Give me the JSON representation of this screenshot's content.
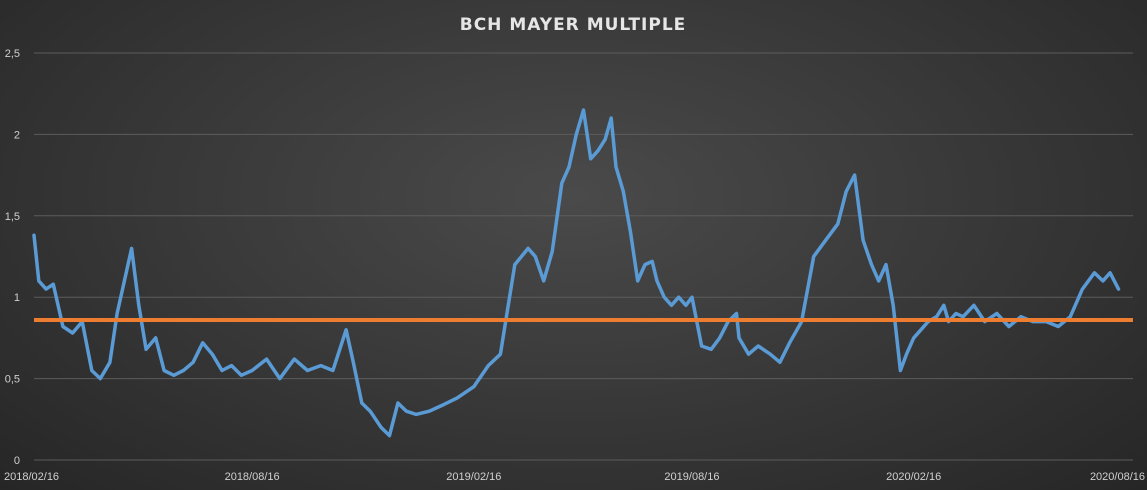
{
  "chart_data": {
    "type": "line",
    "title": "BCH MAYER MULTIPLE",
    "xlabel": "",
    "ylabel": "",
    "x_range": [
      "2018/02/16",
      "2020/08/16"
    ],
    "ylim": [
      0,
      2.5
    ],
    "grid": true,
    "legend": "none",
    "ytick_labels": [
      "0",
      "0,5",
      "1",
      "1,5",
      "2",
      "2,5"
    ],
    "yticks": [
      0,
      0.5,
      1,
      1.5,
      2,
      2.5
    ],
    "xtick_labels": [
      "2018/02/16",
      "2018/08/16",
      "2019/02/16",
      "2019/08/16",
      "2020/02/16",
      "2020/08/16"
    ],
    "colors": {
      "series": "#5b9bd5",
      "reference": "#ed7d31"
    },
    "series": [
      {
        "values_x": [
          "2018/02/16",
          "2018/02/20",
          "2018/02/26",
          "2018/03/04",
          "2018/03/12",
          "2018/03/20",
          "2018/03/28",
          "2018/04/05",
          "2018/04/12",
          "2018/04/20",
          "2018/04/26",
          "2018/05/02",
          "2018/05/08",
          "2018/05/14",
          "2018/05/20",
          "2018/05/28",
          "2018/06/04",
          "2018/06/12",
          "2018/06/20",
          "2018/06/28",
          "2018/07/06",
          "2018/07/14",
          "2018/07/22",
          "2018/07/30",
          "2018/08/07",
          "2018/08/16",
          "2018/08/28",
          "2018/09/08",
          "2018/09/20",
          "2018/10/01",
          "2018/10/12",
          "2018/10/22",
          "2018/11/02",
          "2018/11/08",
          "2018/11/15",
          "2018/11/22",
          "2018/12/01",
          "2018/12/08",
          "2018/12/15",
          "2018/12/22",
          "2018/12/30",
          "2019/01/10",
          "2019/01/22",
          "2019/02/02",
          "2019/02/16",
          "2019/02/28",
          "2019/03/10",
          "2019/03/22",
          "2019/04/02",
          "2019/04/08",
          "2019/04/15",
          "2019/04/22",
          "2019/04/30",
          "2019/05/06",
          "2019/05/12",
          "2019/05/18",
          "2019/05/24",
          "2019/05/30",
          "2019/06/05",
          "2019/06/10",
          "2019/06/14",
          "2019/06/20",
          "2019/06/26",
          "2019/07/02",
          "2019/07/08",
          "2019/07/14",
          "2019/07/18",
          "2019/07/24",
          "2019/07/30",
          "2019/08/05",
          "2019/08/11",
          "2019/08/16",
          "2019/08/24",
          "2019/09/01",
          "2019/09/08",
          "2019/09/15",
          "2019/09/22",
          "2019/09/24",
          "2019/10/02",
          "2019/10/10",
          "2019/10/20",
          "2019/10/28",
          "2019/11/05",
          "2019/11/15",
          "2019/11/25",
          "2019/12/05",
          "2019/12/15",
          "2019/12/22",
          "2019/12/29",
          "2020/01/05",
          "2020/01/12",
          "2020/01/18",
          "2020/01/24",
          "2020/01/30",
          "2020/02/05",
          "2020/02/10",
          "2020/02/16",
          "2020/02/22",
          "2020/02/28",
          "2020/03/06",
          "2020/03/12",
          "2020/03/16",
          "2020/03/22",
          "2020/03/28",
          "2020/04/06",
          "2020/04/15",
          "2020/04/25",
          "2020/05/05",
          "2020/05/15",
          "2020/05/25",
          "2020/06/05",
          "2020/06/15",
          "2020/06/25",
          "2020/07/05",
          "2020/07/15",
          "2020/07/22",
          "2020/07/28",
          "2020/08/04",
          "2020/08/10",
          "2020/08/16"
        ],
        "values": [
          1.38,
          1.1,
          1.05,
          1.08,
          0.82,
          0.78,
          0.85,
          0.55,
          0.5,
          0.6,
          0.9,
          1.1,
          1.3,
          0.95,
          0.68,
          0.75,
          0.55,
          0.52,
          0.55,
          0.6,
          0.72,
          0.65,
          0.55,
          0.58,
          0.52,
          0.55,
          0.62,
          0.5,
          0.62,
          0.55,
          0.58,
          0.55,
          0.8,
          0.6,
          0.35,
          0.3,
          0.2,
          0.15,
          0.35,
          0.3,
          0.28,
          0.3,
          0.34,
          0.38,
          0.45,
          0.58,
          0.65,
          1.2,
          1.3,
          1.25,
          1.1,
          1.28,
          1.7,
          1.8,
          2.0,
          2.15,
          1.85,
          1.9,
          1.97,
          2.1,
          1.8,
          1.65,
          1.4,
          1.1,
          1.2,
          1.22,
          1.1,
          1.0,
          0.95,
          1.0,
          0.95,
          1.0,
          0.7,
          0.68,
          0.75,
          0.85,
          0.9,
          0.75,
          0.65,
          0.7,
          0.65,
          0.6,
          0.72,
          0.85,
          1.25,
          1.35,
          1.45,
          1.65,
          1.75,
          1.35,
          1.2,
          1.1,
          1.2,
          0.95,
          0.55,
          0.65,
          0.75,
          0.8,
          0.85,
          0.88,
          0.95,
          0.85,
          0.9,
          0.88,
          0.95,
          0.85,
          0.9,
          0.82,
          0.88,
          0.85,
          0.85,
          0.82,
          0.88,
          1.05,
          1.15,
          1.1,
          1.15,
          1.05
        ]
      },
      {
        "type": "reference-line",
        "value": 0.86
      }
    ]
  }
}
